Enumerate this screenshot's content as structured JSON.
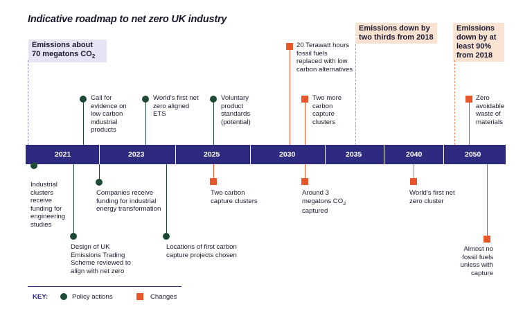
{
  "title": "Indicative roadmap to net zero UK industry",
  "highlights": {
    "start": "Emissions about 70 megatons CO",
    "start_sub": "2",
    "mid": "Emissions down by two thirds from 2018",
    "end": "Emissions down by at least 90% from 2018"
  },
  "years": [
    "2021",
    "2023",
    "2025",
    "2030",
    "2035",
    "2040",
    "2050"
  ],
  "above": {
    "a1": "Call for evidence on low carbon industrial products",
    "a2": "World's first net zero aligned ETS",
    "a3": "Voluntary product standards (potential)",
    "a4": "20 Terawatt hours fossil fuels replaced with low carbon alternatives",
    "a5": "Two more carbon capture clusters",
    "a6": "Zero avoidable waste of materials"
  },
  "below": {
    "b1": "Industrial clusters receive funding for engineering studies",
    "b2": "Design of UK Emissions Trading Scheme reviewed to align with net zero",
    "b3": "Companies receive funding for industrial energy transformation",
    "b4": "Locations of first carbon capture projects chosen",
    "b5": "Two carbon capture clusters",
    "b6_pre": "Around 3 megatons CO",
    "b6_sub": "2",
    "b6_post": " captured",
    "b7": "World's first net zero cluster",
    "b8": "Almost no fossil fuels unless with capture"
  },
  "key": {
    "label": "KEY:",
    "policy": "Policy actions",
    "changes": "Changes"
  },
  "colors": {
    "bar": "#2d2a7f",
    "policy": "#1d4a35",
    "change": "#e8572a",
    "highlight_start": "#e6e4f4",
    "highlight_target": "#fbe3d3"
  }
}
